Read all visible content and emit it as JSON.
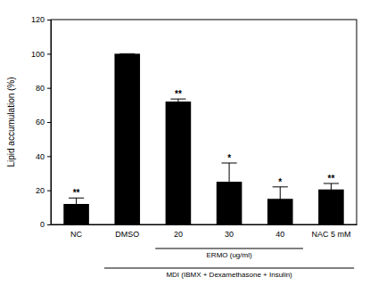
{
  "chart_data": {
    "type": "bar",
    "y_label": "Lipid accumulation (%)",
    "categories": [
      "NC",
      "DMSO",
      "20",
      "30",
      "40",
      "NAC 5 mM"
    ],
    "values": [
      12,
      100,
      72,
      25,
      15,
      20.5
    ],
    "errors": [
      3.5,
      0,
      1.5,
      11,
      7,
      3.5
    ],
    "significance": [
      "**",
      null,
      "**",
      "*",
      "*",
      "**"
    ],
    "groups": [
      {
        "label": "ERMO (ug/ml)",
        "categories": [
          "20",
          "30",
          "40"
        ]
      },
      {
        "label": "MDI (IBMX + Dexamethasone + Insulin)",
        "categories": [
          "DMSO",
          "20",
          "30",
          "40",
          "NAC 5 mM"
        ]
      }
    ],
    "color": "#000000",
    "ylim": [
      0,
      120
    ],
    "yticks": [
      0,
      20,
      40,
      60,
      80,
      100,
      120
    ],
    "grid": false
  }
}
